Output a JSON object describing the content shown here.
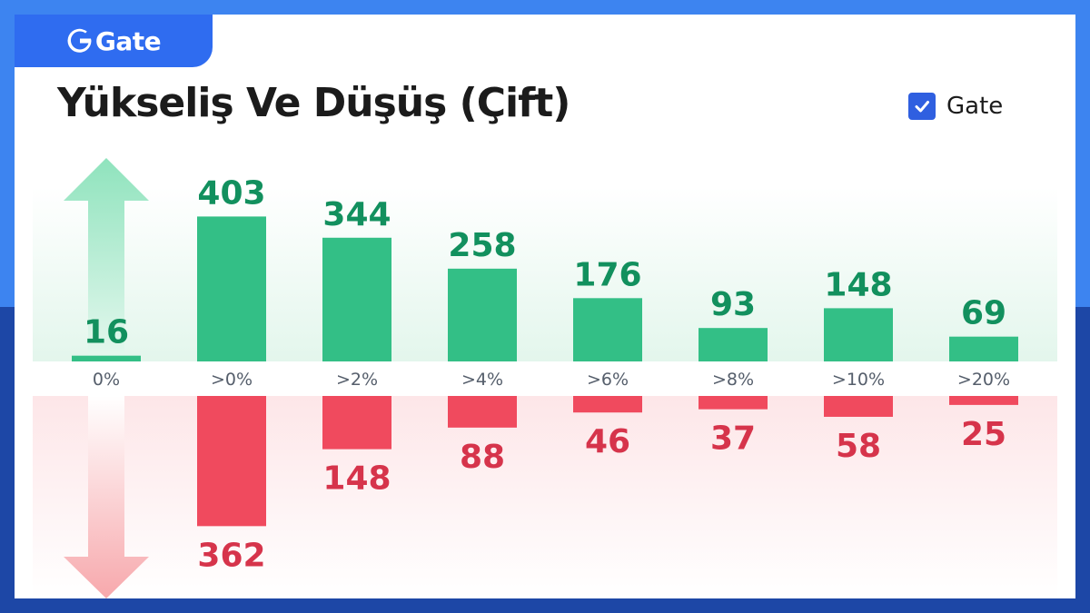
{
  "brand": {
    "logo_text": "Gate"
  },
  "chart_data": {
    "type": "bar",
    "title": "Yükseliş Ve Düşüş (Çift)",
    "legend": [
      "Gate"
    ],
    "categories": [
      "0%",
      ">0%",
      ">2%",
      ">4%",
      ">6%",
      ">8%",
      ">10%",
      ">20%"
    ],
    "series": [
      {
        "name": "Yükseliş",
        "values": [
          16,
          403,
          344,
          258,
          176,
          93,
          148,
          69
        ]
      },
      {
        "name": "Düşüş",
        "values": [
          null,
          362,
          148,
          88,
          46,
          37,
          58,
          25
        ]
      }
    ],
    "legend_checked": true
  },
  "colors": {
    "up": "#33bf86",
    "up_label": "#12905e",
    "down": "#f04a5e",
    "down_label": "#d6344b",
    "axis_label": "#555e6b"
  },
  "icons": {
    "logo": "gate-logo-icon",
    "checkbox": "checkbox-checked-icon",
    "up_arrow": "arrow-up-icon",
    "down_arrow": "arrow-down-icon"
  }
}
